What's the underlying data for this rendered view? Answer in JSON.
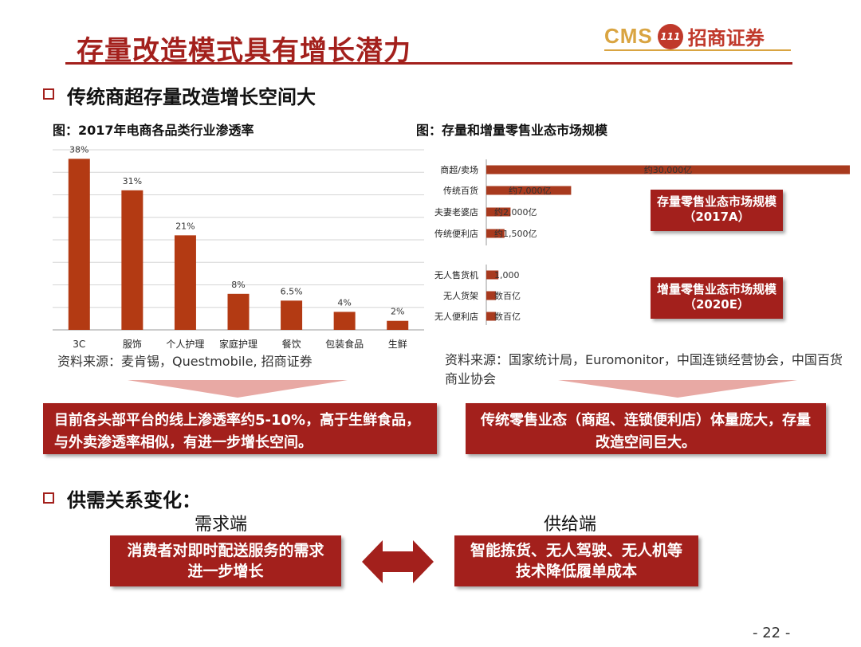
{
  "page": {
    "title": "存量改造模式具有增长潜力",
    "page_number": "- 22 -"
  },
  "logo": {
    "cms": "CMS",
    "badge": "111",
    "name": "招商证券"
  },
  "section1": {
    "heading": "传统商超存量改造增长空间大"
  },
  "chart_left": {
    "title": "图：2017年电商各品类行业渗透率",
    "source": "资料来源：麦肯锡，Questmobile, 招商证券",
    "callout": "目前各头部平台的线上渗透率约5-10%，高于生鲜食品，与外卖渗透率相似，有进一步增长空间。"
  },
  "chart_right": {
    "title": "图：存量和增量零售业态市场规模",
    "source": "资料来源：国家统计局，Euromonitor，中国连锁经营协会，中国百货商业协会",
    "label_existing": "存量零售业态市场规模（2017A）",
    "label_incremental": "增量零售业态市场规模（2020E）",
    "callout": "传统零售业态（商超、连锁便利店）体量庞大，存量改造空间巨大。"
  },
  "section2": {
    "heading": "供需关系变化：",
    "demand_label": "需求端",
    "supply_label": "供给端",
    "demand_text": "消费者对即时配送服务的需求进一步增长",
    "supply_text": "智能拣货、无人驾驶、无人机等技术降低履单成本"
  },
  "colors": {
    "brand_red": "#a3201c",
    "bar_left": "#b33a13",
    "bar_right": "#a83a1e",
    "gold": "#d9a441",
    "grid": "#d6d6d6"
  },
  "icons": {
    "bullet": "square-bullet-icon",
    "arrow": "double-arrow-icon"
  },
  "chart_data": [
    {
      "type": "bar",
      "title": "图：2017年电商各品类行业渗透率",
      "categories": [
        "3C",
        "服饰",
        "个人护理",
        "家庭护理",
        "餐饮",
        "包装食品",
        "生鲜"
      ],
      "values": [
        38,
        31,
        21,
        8,
        6.5,
        4,
        2
      ],
      "data_labels": [
        "38%",
        "31%",
        "21%",
        "8%",
        "6.5%",
        "4%",
        "2%"
      ],
      "ylim": [
        0,
        40
      ],
      "grid": true,
      "legend": "none"
    },
    {
      "type": "bar",
      "orientation": "horizontal",
      "title": "图：存量和增量零售业态市场规模",
      "categories": [
        "商超/卖场",
        "传统百货",
        "夫妻老婆店",
        "传统便利店",
        "无人售货机",
        "无人货架",
        "无人便利店"
      ],
      "values": [
        30000,
        7000,
        2000,
        1500,
        1000,
        500,
        500
      ],
      "unit": "亿",
      "data_labels": [
        "约30,000亿",
        "约7,000亿",
        "约2,000亿",
        "约1,500亿",
        "1,000",
        "数百亿",
        "数百亿"
      ],
      "groups": [
        "存量",
        "存量",
        "存量",
        "存量",
        "增量",
        "增量",
        "增量"
      ],
      "xlim": [
        0,
        30000
      ],
      "grid": false,
      "legend": "none"
    }
  ]
}
